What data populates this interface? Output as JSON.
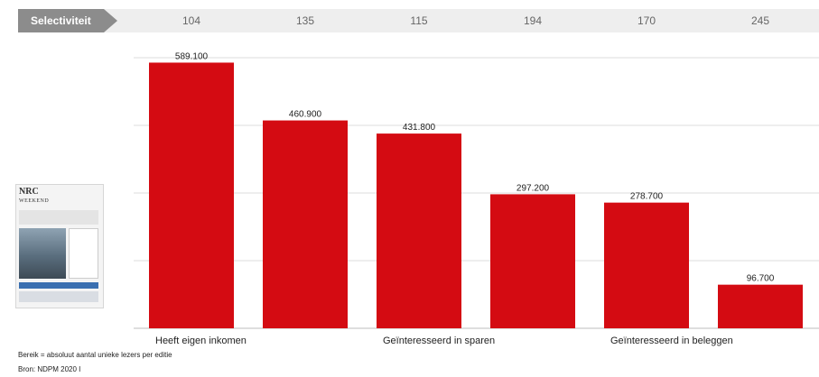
{
  "selectivity": {
    "label": "Selectiviteit",
    "values": [
      "104",
      "135",
      "115",
      "194",
      "170",
      "245"
    ]
  },
  "chart_data": {
    "type": "bar",
    "categories": [
      "Heeft eigen inkomen",
      "",
      "Geïnteresseerd in sparen",
      "",
      "Geïnteresseerd in beleggen",
      ""
    ],
    "values": [
      589100,
      460900,
      431800,
      297200,
      278700,
      96700
    ],
    "value_labels": [
      "589.100",
      "460.900",
      "431.800",
      "297.200",
      "278.700",
      "96.700"
    ],
    "ylim": [
      0,
      600000
    ],
    "gridlines": [
      0,
      150000,
      300000,
      450000,
      600000
    ],
    "grid": true,
    "bar_color": "#d40b12",
    "xlabel": "",
    "ylabel": ""
  },
  "thumbnail": {
    "logo_line1": "NRC",
    "logo_line2": "WEEKEND"
  },
  "footnotes": {
    "reach": "Bereik = absoluut aantal unieke lezers per editie",
    "source": "Bron: NDPM 2020 I"
  },
  "colors": {
    "accent": "#d40b12",
    "tag": "#8c8c8c",
    "band": "#eeeeee",
    "grid": "#dddddd"
  }
}
